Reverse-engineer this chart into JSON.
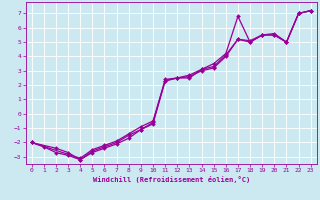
{
  "xlabel": "Windchill (Refroidissement éolien,°C)",
  "bg_color": "#cce8f0",
  "line_color": "#990099",
  "grid_color": "#aaddee",
  "xlim": [
    -0.5,
    23.5
  ],
  "ylim": [
    -3.5,
    7.8
  ],
  "yticks": [
    -3,
    -2,
    -1,
    0,
    1,
    2,
    3,
    4,
    5,
    6,
    7
  ],
  "xticks": [
    0,
    1,
    2,
    3,
    4,
    5,
    6,
    7,
    8,
    9,
    10,
    11,
    12,
    13,
    14,
    15,
    16,
    17,
    18,
    19,
    20,
    21,
    22,
    23
  ],
  "line1_x": [
    0,
    1,
    2,
    3,
    4,
    5,
    6,
    7,
    8,
    9,
    10,
    11,
    12,
    13,
    14,
    15,
    16,
    17,
    18,
    19,
    20,
    21,
    22,
    23
  ],
  "line1_y": [
    -2.0,
    -2.3,
    -2.7,
    -2.9,
    -3.2,
    -2.7,
    -2.4,
    -2.1,
    -1.7,
    -1.1,
    -0.6,
    2.4,
    2.5,
    2.5,
    3.1,
    3.5,
    4.2,
    6.8,
    5.0,
    5.5,
    5.5,
    5.0,
    7.0,
    7.2
  ],
  "line2_x": [
    0,
    2,
    3,
    4,
    5,
    6,
    7,
    8,
    9,
    10,
    11,
    12,
    13,
    14,
    15,
    16,
    17,
    18,
    19,
    20,
    21,
    22,
    23
  ],
  "line2_y": [
    -2.0,
    -2.4,
    -2.7,
    -3.2,
    -2.6,
    -2.3,
    -2.0,
    -1.5,
    -1.1,
    -0.7,
    2.3,
    2.5,
    2.6,
    3.0,
    3.2,
    4.0,
    5.2,
    5.0,
    5.5,
    5.5,
    5.0,
    7.0,
    7.2
  ],
  "line3_x": [
    0,
    4,
    5,
    6,
    7,
    8,
    9,
    10,
    11,
    12,
    13,
    14,
    15,
    16,
    17,
    18,
    19,
    20,
    21,
    22,
    23
  ],
  "line3_y": [
    -2.0,
    -3.1,
    -2.5,
    -2.2,
    -1.9,
    -1.4,
    -0.9,
    -0.5,
    2.3,
    2.5,
    2.7,
    3.1,
    3.3,
    4.1,
    5.2,
    5.1,
    5.5,
    5.6,
    5.0,
    7.0,
    7.2
  ]
}
